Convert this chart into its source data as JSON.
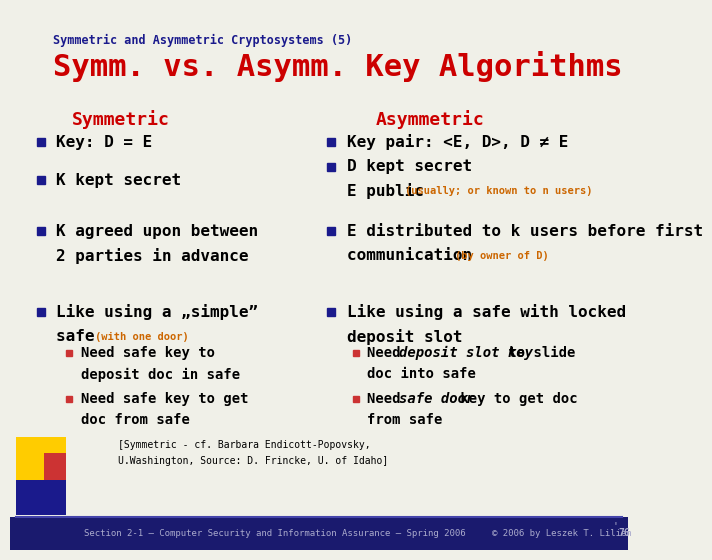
{
  "bg_color": "#f0f0e8",
  "footer_bg": "#1a1a6e",
  "title_small": "Symmetric and Asymmetric Cryptosystems (5)",
  "title_large": "Symm. vs. Asymm. Key Algorithms",
  "col_left_header": "Symmetric",
  "col_right_header": "Asymmetric",
  "title_small_color": "#1a1a8c",
  "title_large_color": "#cc0000",
  "header_color": "#cc0000",
  "bullet_color": "#1a1a8c",
  "text_color": "#000000",
  "small_text_color": "#cc6600",
  "footer_text_color": "#aaaacc",
  "footer_line_color": "#4444aa",
  "accent_yellow": "#ffcc00",
  "accent_blue": "#1a1a8c",
  "accent_red": "#cc3333",
  "footer_left": "Section 2-1 – Computer Security and Information Assurance – Spring 2006",
  "footer_right": "© 2006 by Leszek T. Lilien",
  "page_num": "76"
}
